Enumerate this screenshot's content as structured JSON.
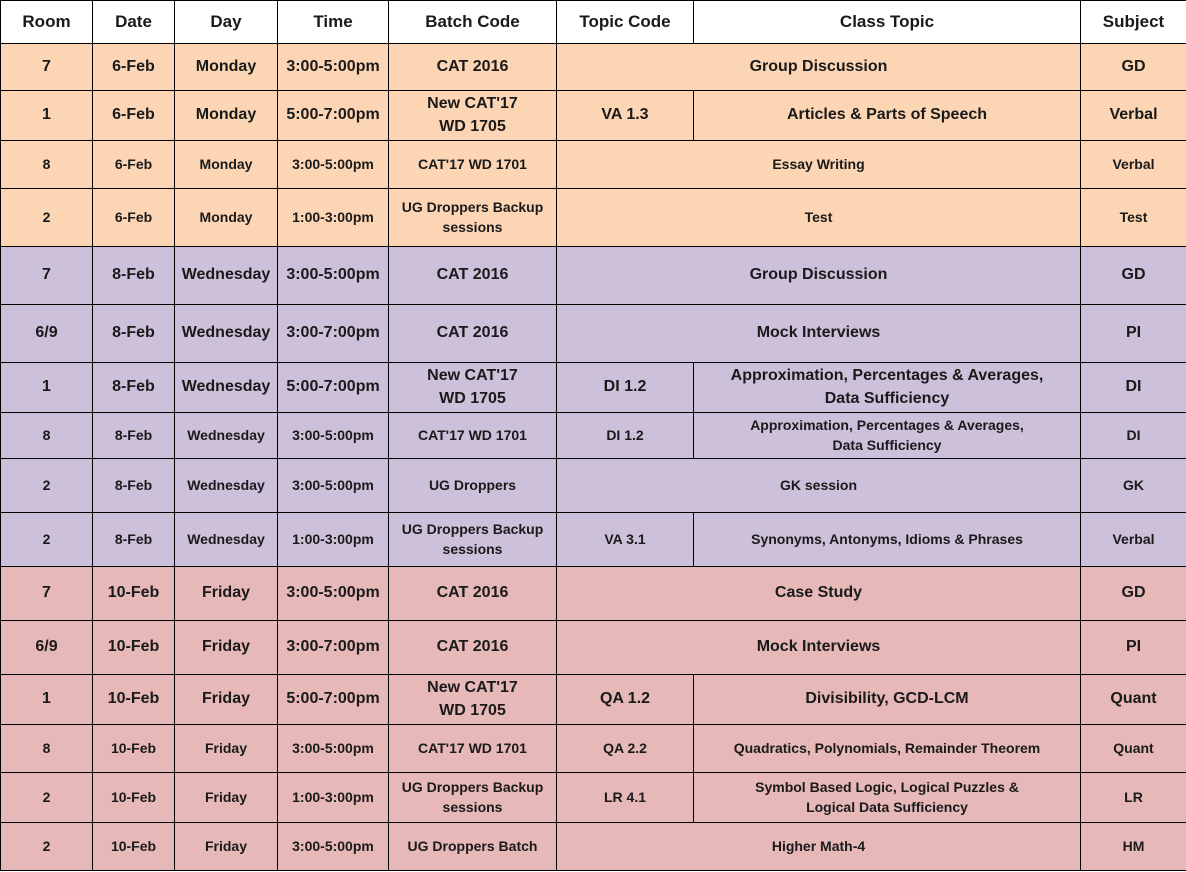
{
  "table": {
    "headers": [
      "Room",
      "Date",
      "Day",
      "Time",
      "Batch Code",
      "Topic Code",
      "Class Topic",
      "Subject"
    ],
    "rows": [
      {
        "room": "7",
        "date": "6-Feb",
        "day": "Monday",
        "time": "3:00-5:00pm",
        "batch": "CAT 2016",
        "topic": "Group Discussion",
        "subject": "GD"
      },
      {
        "room": "1",
        "date": "6-Feb",
        "day": "Monday",
        "time": "5:00-7:00pm",
        "batch": "New CAT'17\nWD 1705",
        "topic_code": "VA 1.3",
        "topic": "Articles & Parts of Speech",
        "subject": "Verbal"
      },
      {
        "room": "8",
        "date": "6-Feb",
        "day": "Monday",
        "time": "3:00-5:00pm",
        "batch": "CAT'17 WD 1701",
        "topic": "Essay Writing",
        "subject": "Verbal"
      },
      {
        "room": "2",
        "date": "6-Feb",
        "day": "Monday",
        "time": "1:00-3:00pm",
        "batch": "UG Droppers Backup\nsessions",
        "topic": "Test",
        "subject": "Test"
      },
      {
        "room": "7",
        "date": "8-Feb",
        "day": "Wednesday",
        "time": "3:00-5:00pm",
        "batch": "CAT 2016",
        "topic": "Group Discussion",
        "subject": "GD"
      },
      {
        "room": "6/9",
        "date": "8-Feb",
        "day": "Wednesday",
        "time": "3:00-7:00pm",
        "batch": "CAT 2016",
        "topic": "Mock Interviews",
        "subject": "PI"
      },
      {
        "room": "1",
        "date": "8-Feb",
        "day": "Wednesday",
        "time": "5:00-7:00pm",
        "batch": "New CAT'17\nWD 1705",
        "topic_code": "DI 1.2",
        "topic": "Approximation, Percentages & Averages,\nData Sufficiency",
        "subject": "DI"
      },
      {
        "room": "8",
        "date": "8-Feb",
        "day": "Wednesday",
        "time": "3:00-5:00pm",
        "batch": "CAT'17 WD 1701",
        "topic_code": "DI 1.2",
        "topic": "Approximation, Percentages & Averages,\nData Sufficiency",
        "subject": "DI"
      },
      {
        "room": "2",
        "date": "8-Feb",
        "day": "Wednesday",
        "time": "3:00-5:00pm",
        "batch": "UG Droppers",
        "topic": "GK session",
        "subject": "GK"
      },
      {
        "room": "2",
        "date": "8-Feb",
        "day": "Wednesday",
        "time": "1:00-3:00pm",
        "batch": "UG Droppers Backup\nsessions",
        "topic_code": "VA 3.1",
        "topic": "Synonyms, Antonyms, Idioms & Phrases",
        "subject": "Verbal"
      },
      {
        "room": "7",
        "date": "10-Feb",
        "day": "Friday",
        "time": "3:00-5:00pm",
        "batch": "CAT 2016",
        "topic": "Case Study",
        "subject": "GD"
      },
      {
        "room": "6/9",
        "date": "10-Feb",
        "day": "Friday",
        "time": "3:00-7:00pm",
        "batch": "CAT 2016",
        "topic": "Mock Interviews",
        "subject": "PI"
      },
      {
        "room": "1",
        "date": "10-Feb",
        "day": "Friday",
        "time": "5:00-7:00pm",
        "batch": "New CAT'17\nWD 1705",
        "topic_code": "QA 1.2",
        "topic": "Divisibility, GCD-LCM",
        "subject": "Quant"
      },
      {
        "room": "8",
        "date": "10-Feb",
        "day": "Friday",
        "time": "3:00-5:00pm",
        "batch": "CAT'17 WD 1701",
        "topic_code": "QA 2.2",
        "topic": "Quadratics, Polynomials, Remainder Theorem",
        "subject": "Quant"
      },
      {
        "room": "2",
        "date": "10-Feb",
        "day": "Friday",
        "time": "1:00-3:00pm",
        "batch": "UG Droppers Backup\nsessions",
        "topic_code": "LR 4.1",
        "topic": "Symbol Based Logic, Logical Puzzles &\nLogical Data Sufficiency",
        "subject": "LR"
      },
      {
        "room": "2",
        "date": "10-Feb",
        "day": "Friday",
        "time": "3:00-5:00pm",
        "batch": "UG Droppers Batch",
        "topic": "Higher Math-4",
        "subject": "HM"
      }
    ]
  }
}
